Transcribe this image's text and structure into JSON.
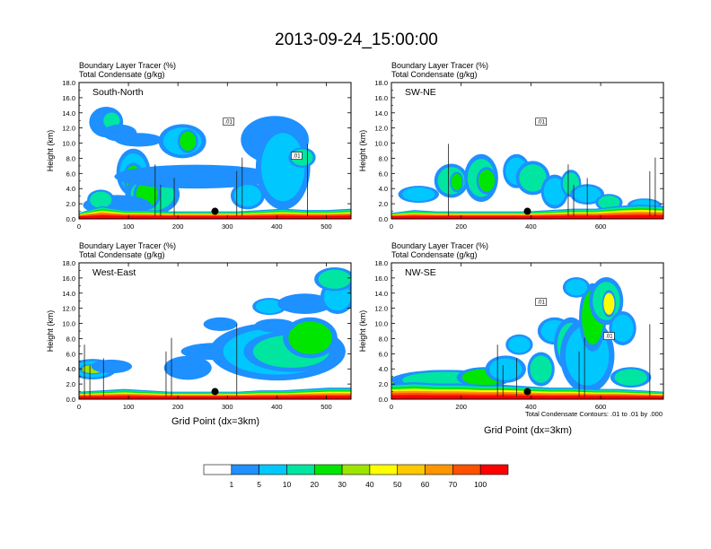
{
  "title": "2013-09-24_15:00:00",
  "panel_headers": {
    "line1": "Boundary Layer Tracer   (%)",
    "line2": "Total Condensate   (g/kg)"
  },
  "ylabel": "Height (km)",
  "xlabel": "Grid Point (dx=3km)",
  "contour_note": "Total Condensate Contours: .01 to .01 by .000",
  "colorbar": {
    "labels": [
      "1",
      "5",
      "10",
      "20",
      "30",
      "40",
      "50",
      "60",
      "70",
      "100"
    ],
    "colors": [
      "#ffffff",
      "#1e90ff",
      "#00c8ff",
      "#00e6a0",
      "#00e600",
      "#9be600",
      "#ffff00",
      "#ffc800",
      "#ff9600",
      "#ff5000",
      "#ff0000"
    ]
  },
  "chart_data": [
    {
      "type": "heatmap",
      "label": "South-North",
      "xlim": [
        0,
        550
      ],
      "ylim": [
        0,
        18
      ],
      "xticks": [
        0,
        100,
        200,
        300,
        400,
        500
      ],
      "yticks": [
        "0.0",
        "2.0",
        "4.0",
        "6.0",
        "8.0",
        "10.0",
        "12.0",
        "14.0",
        "16.0",
        "18.0"
      ],
      "contour_labels": [
        ".01",
        ".01"
      ],
      "marker": {
        "x": 275,
        "y": 1.0
      }
    },
    {
      "type": "heatmap",
      "label": "SW-NE",
      "xlim": [
        0,
        780
      ],
      "ylim": [
        0,
        18
      ],
      "xticks": [
        0,
        200,
        400,
        600
      ],
      "yticks": [
        "0.0",
        "2.0",
        "4.0",
        "6.0",
        "8.0",
        "10.0",
        "12.0",
        "14.0",
        "16.0",
        "18.0"
      ],
      "contour_labels": [
        ".01"
      ],
      "marker": {
        "x": 390,
        "y": 1.0
      }
    },
    {
      "type": "heatmap",
      "label": "West-East",
      "xlim": [
        0,
        550
      ],
      "ylim": [
        0,
        18
      ],
      "xticks": [
        0,
        100,
        200,
        300,
        400,
        500
      ],
      "yticks": [
        "0.0",
        "2.0",
        "4.0",
        "6.0",
        "8.0",
        "10.0",
        "12.0",
        "14.0",
        "16.0",
        "18.0"
      ],
      "contour_labels": [],
      "marker": {
        "x": 275,
        "y": 1.0
      }
    },
    {
      "type": "heatmap",
      "label": "NW-SE",
      "xlim": [
        0,
        780
      ],
      "ylim": [
        0,
        18
      ],
      "xticks": [
        0,
        200,
        400,
        600
      ],
      "yticks": [
        "0.0",
        "2.0",
        "4.0",
        "6.0",
        "8.0",
        "10.0",
        "12.0",
        "14.0",
        "16.0",
        "18.0"
      ],
      "contour_labels": [
        ".01",
        ".01"
      ],
      "marker": {
        "x": 390,
        "y": 1.0
      }
    }
  ]
}
